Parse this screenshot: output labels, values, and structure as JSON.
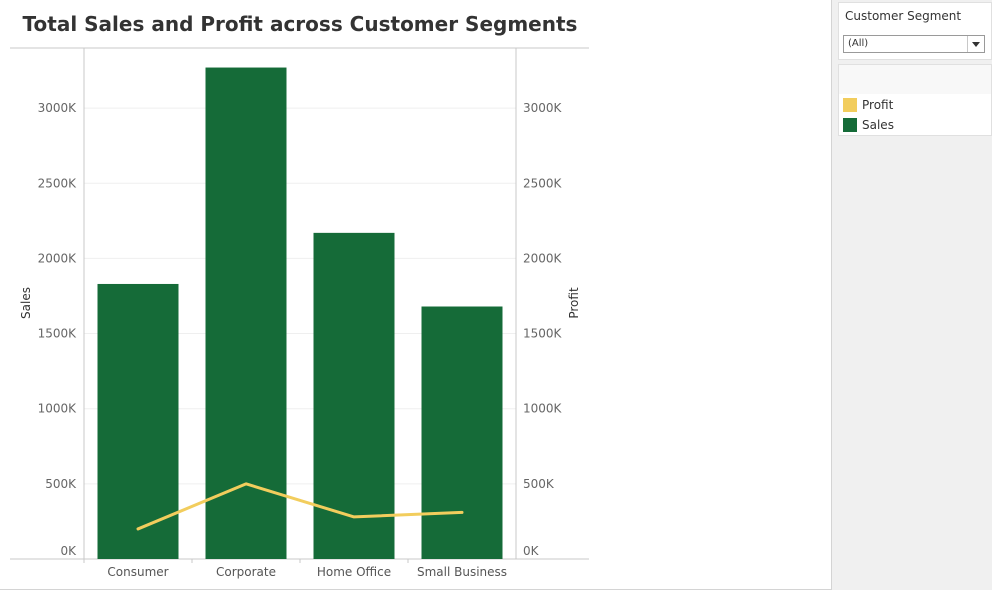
{
  "chart_data": {
    "type": "bar+line",
    "title": "Total Sales and Profit across Customer Segments",
    "categories": [
      "Consumer",
      "Corporate",
      "Home Office",
      "Small Business"
    ],
    "series": [
      {
        "name": "Sales",
        "type": "bar",
        "axis": "left",
        "values": [
          1830000,
          3270000,
          2170000,
          1680000
        ]
      },
      {
        "name": "Profit",
        "type": "line",
        "axis": "right",
        "values": [
          200000,
          500000,
          280000,
          310000
        ]
      }
    ],
    "ylabel": "Sales",
    "y2label": "Profit",
    "ylim": [
      0,
      3400000
    ],
    "y2lim": [
      0,
      3400000
    ],
    "yticks": [
      "0K",
      "500K",
      "1000K",
      "1500K",
      "2000K",
      "2500K",
      "3000K"
    ],
    "ytick_values": [
      0,
      500000,
      1000000,
      1500000,
      2000000,
      2500000,
      3000000
    ],
    "grid": true
  },
  "colors": {
    "sales": "#156b38",
    "profit": "#f2cd5d",
    "gridline": "#efefef",
    "axis": "#c8c8c8"
  },
  "filter": {
    "title": "Customer Segment",
    "selected": "(All)"
  },
  "legend": {
    "items": [
      {
        "label": "Profit",
        "color": "#f2cd5d"
      },
      {
        "label": "Sales",
        "color": "#156b38"
      }
    ]
  }
}
